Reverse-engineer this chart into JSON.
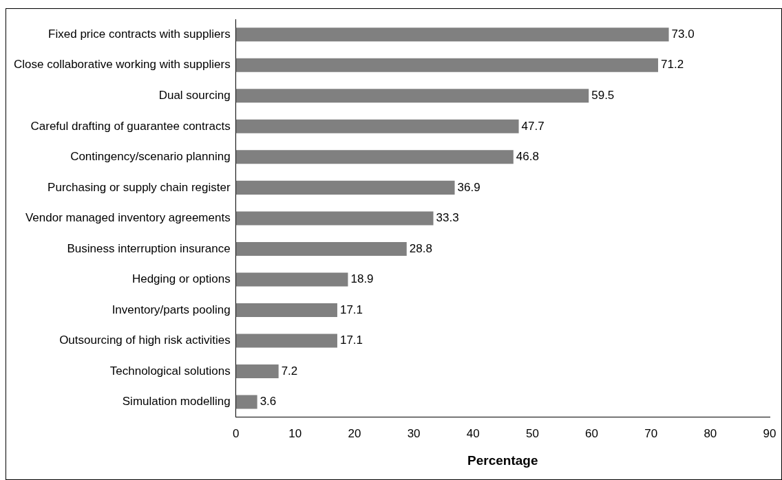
{
  "chart_data": {
    "type": "bar",
    "orientation": "horizontal",
    "xlabel": "Percentage",
    "categories": [
      "Fixed price contracts with suppliers",
      "Close collaborative working with suppliers",
      "Dual sourcing",
      "Careful drafting of guarantee contracts",
      "Contingency/scenario planning",
      "Purchasing or supply chain register",
      "Vendor managed inventory agreements",
      "Business interruption insurance",
      "Hedging or options",
      "Inventory/parts pooling",
      "Outsourcing of high risk activities",
      "Technological solutions",
      "Simulation modelling"
    ],
    "values": [
      73.0,
      71.2,
      59.5,
      47.7,
      46.8,
      36.9,
      33.3,
      28.8,
      18.9,
      17.1,
      17.1,
      7.2,
      3.6
    ],
    "value_labels": [
      "73.0",
      "71.2",
      "59.5",
      "47.7",
      "46.8",
      "36.9",
      "33.3",
      "28.8",
      "18.9",
      "17.1",
      "17.1",
      "7.2",
      "3.6"
    ],
    "color": "#808080",
    "xlim": [
      0,
      90
    ],
    "xticks": [
      0,
      10,
      20,
      30,
      40,
      50,
      60,
      70,
      80,
      90
    ],
    "grid": false,
    "legend": false
  }
}
